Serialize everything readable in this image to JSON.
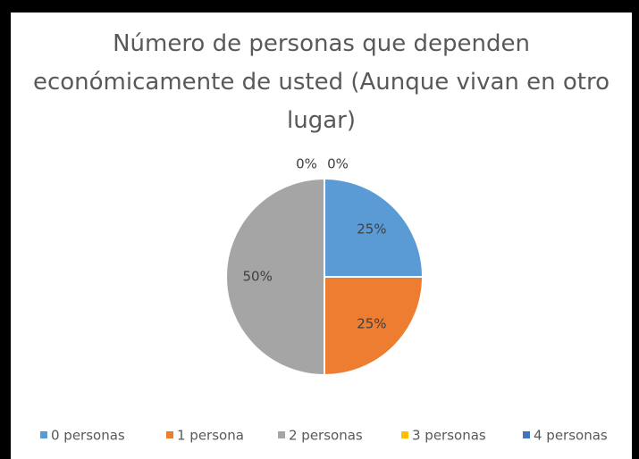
{
  "chart_data": {
    "type": "pie",
    "title": "Número de personas que dependen económicamente de usted (Aunque vivan en otro lugar)",
    "categories": [
      "0 personas",
      "1 persona",
      "2 personas",
      "3 personas",
      "4 personas"
    ],
    "values": [
      25,
      25,
      50,
      0,
      0
    ],
    "value_labels": [
      "25%",
      "25%",
      "50%",
      "0%",
      "0%"
    ],
    "colors": [
      "#5b9bd5",
      "#ed7d31",
      "#a5a5a5",
      "#ffc000",
      "#4472c4"
    ],
    "legend": "bottom"
  }
}
